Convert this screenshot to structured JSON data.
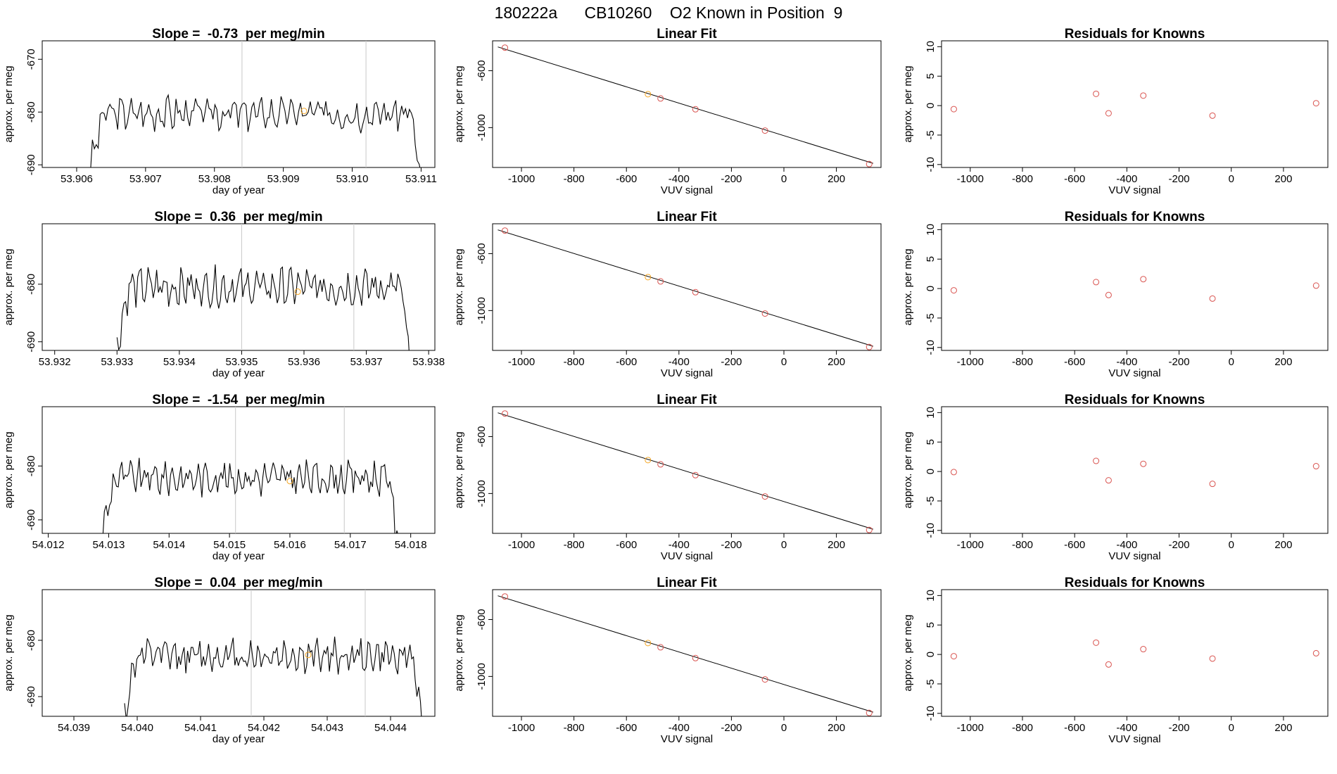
{
  "main_title": "180222a      CB10260    O2 Known in Position  9",
  "chart_data": [
    {
      "type": "line",
      "panel": "time-series-1",
      "title": "Slope =  -0.73  per meg/min",
      "xlabel": "day of year",
      "ylabel": "approx. per meg",
      "xlim": [
        53.9055,
        53.9112
      ],
      "ylim": [
        -690.5,
        -666.5
      ],
      "xticks": [
        53.906,
        53.907,
        53.908,
        53.909,
        53.91,
        53.911
      ],
      "xtick_labels": [
        "53.906",
        "53.907",
        "53.908",
        "53.909",
        "53.910",
        "53.911"
      ],
      "yticks": [
        -670,
        -680,
        -690
      ],
      "ytick_labels": [
        "-670",
        "-680",
        "-690"
      ],
      "vlines": [
        53.9084,
        53.9102
      ],
      "x_start": 53.9062,
      "x_end": 53.911,
      "y_base": -680.2,
      "y_amp": 3.2,
      "marker": {
        "x": 53.9093,
        "y": -679.8,
        "color": "#f5a623"
      },
      "line_color": "#000000",
      "vline_color": "#c8c8c8"
    },
    {
      "type": "scatter",
      "panel": "linear-fit-1",
      "title": "Linear Fit",
      "xlabel": "VUV signal",
      "ylabel": "approx. per meg",
      "xlim": [
        -1110,
        370
      ],
      "ylim": [
        -1280,
        -390
      ],
      "xticks": [
        -1000,
        -800,
        -600,
        -400,
        -200,
        0,
        200
      ],
      "xtick_labels": [
        "-1000",
        "-800",
        "-600",
        "-400",
        "-200",
        "0",
        "200"
      ],
      "yticks": [
        -600,
        -1000
      ],
      "ytick_labels": [
        "-600",
        "-1000"
      ],
      "fit_line": {
        "x": [
          -1090,
          340
        ],
        "y": [
          -433,
          -1251
        ]
      },
      "x": [
        -1063,
        -518,
        -470,
        -337,
        -72,
        325
      ],
      "y": [
        -438,
        -765,
        -795,
        -871,
        -1021,
        -1256
      ],
      "point_colors": [
        "#d9534f",
        "#f5a623",
        "#d9534f",
        "#d9534f",
        "#d9534f",
        "#d9534f"
      ]
    },
    {
      "type": "scatter",
      "panel": "residuals-1",
      "title": "Residuals for Knowns",
      "xlabel": "VUV signal",
      "ylabel": "approx. per meg",
      "xlim": [
        -1110,
        370
      ],
      "ylim": [
        -10.5,
        11
      ],
      "xticks": [
        -1000,
        -800,
        -600,
        -400,
        -200,
        0,
        200
      ],
      "xtick_labels": [
        "-1000",
        "-800",
        "-600",
        "-400",
        "-200",
        "0",
        "200"
      ],
      "yticks": [
        10,
        5,
        0,
        -5,
        -10
      ],
      "ytick_labels": [
        "10",
        "5",
        "0",
        "-5",
        "-10"
      ],
      "x": [
        -1063,
        -518,
        -470,
        -337,
        -72,
        325
      ],
      "y": [
        -0.6,
        2.0,
        -1.3,
        1.7,
        -1.7,
        0.4
      ],
      "point_color": "#d9534f"
    },
    {
      "type": "line",
      "panel": "time-series-2",
      "title": "Slope =  0.36  per meg/min",
      "xlabel": "day of year",
      "ylabel": "approx. per meg",
      "xlim": [
        53.9318,
        53.9381
      ],
      "ylim": [
        -691.5,
        -669.5
      ],
      "xticks": [
        53.932,
        53.933,
        53.934,
        53.935,
        53.936,
        53.937,
        53.938
      ],
      "xtick_labels": [
        "53.932",
        "53.933",
        "53.934",
        "53.935",
        "53.936",
        "53.937",
        "53.938"
      ],
      "yticks": [
        -680,
        -690
      ],
      "ytick_labels": [
        "-680",
        "-690"
      ],
      "vlines": [
        53.935,
        53.9368
      ],
      "x_start": 53.933,
      "x_end": 53.9377,
      "y_base": -680.5,
      "y_amp": 3.3,
      "marker": {
        "x": 53.9359,
        "y": -681.3,
        "color": "#f5a623"
      },
      "line_color": "#000000",
      "vline_color": "#c8c8c8"
    },
    {
      "type": "scatter",
      "panel": "linear-fit-2",
      "title": "Linear Fit",
      "xlabel": "VUV signal",
      "ylabel": "approx. per meg",
      "xlim": [
        -1110,
        370
      ],
      "ylim": [
        -1280,
        -390
      ],
      "xticks": [
        -1000,
        -800,
        -600,
        -400,
        -200,
        0,
        200
      ],
      "xtick_labels": [
        "-1000",
        "-800",
        "-600",
        "-400",
        "-200",
        "0",
        "200"
      ],
      "yticks": [
        -600,
        -1000
      ],
      "ytick_labels": [
        "-600",
        "-1000"
      ],
      "fit_line": {
        "x": [
          -1090,
          340
        ],
        "y": [
          -433,
          -1251
        ]
      },
      "x": [
        -1063,
        -518,
        -470,
        -337,
        -72,
        325
      ],
      "y": [
        -438,
        -765,
        -795,
        -871,
        -1021,
        -1256
      ],
      "point_colors": [
        "#d9534f",
        "#f5a623",
        "#d9534f",
        "#d9534f",
        "#d9534f",
        "#d9534f"
      ]
    },
    {
      "type": "scatter",
      "panel": "residuals-2",
      "title": "Residuals for Knowns",
      "xlabel": "VUV signal",
      "ylabel": "approx. per meg",
      "xlim": [
        -1110,
        370
      ],
      "ylim": [
        -10.5,
        11
      ],
      "xticks": [
        -1000,
        -800,
        -600,
        -400,
        -200,
        0,
        200
      ],
      "xtick_labels": [
        "-1000",
        "-800",
        "-600",
        "-400",
        "-200",
        "0",
        "200"
      ],
      "yticks": [
        10,
        5,
        0,
        -5,
        -10
      ],
      "ytick_labels": [
        "10",
        "5",
        "0",
        "-5",
        "-10"
      ],
      "x": [
        -1063,
        -518,
        -470,
        -337,
        -72,
        325
      ],
      "y": [
        -0.3,
        1.1,
        -1.1,
        1.6,
        -1.7,
        0.5
      ],
      "point_color": "#d9534f"
    },
    {
      "type": "line",
      "panel": "time-series-3",
      "title": "Slope =  -1.54  per meg/min",
      "xlabel": "day of year",
      "ylabel": "approx. per meg",
      "xlim": [
        54.0119,
        54.0184
      ],
      "ylim": [
        -692.5,
        -669
      ],
      "xticks": [
        54.012,
        54.013,
        54.014,
        54.015,
        54.016,
        54.017,
        54.018
      ],
      "xtick_labels": [
        "54.012",
        "54.013",
        "54.014",
        "54.015",
        "54.016",
        "54.017",
        "54.018"
      ],
      "yticks": [
        -680,
        -690
      ],
      "ytick_labels": [
        "-680",
        "-690"
      ],
      "vlines": [
        54.0151,
        54.0169
      ],
      "x_start": 54.0129,
      "x_end": 54.0178,
      "y_base": -682.2,
      "y_amp": 3.2,
      "marker": {
        "x": 54.016,
        "y": -682.8,
        "color": "#f5a623"
      },
      "line_color": "#000000",
      "vline_color": "#c8c8c8"
    },
    {
      "type": "scatter",
      "panel": "linear-fit-3",
      "title": "Linear Fit",
      "xlabel": "VUV signal",
      "ylabel": "approx. per meg",
      "xlim": [
        -1110,
        370
      ],
      "ylim": [
        -1280,
        -390
      ],
      "xticks": [
        -1000,
        -800,
        -600,
        -400,
        -200,
        0,
        200
      ],
      "xtick_labels": [
        "-1000",
        "-800",
        "-600",
        "-400",
        "-200",
        "0",
        "200"
      ],
      "yticks": [
        -600,
        -1000
      ],
      "ytick_labels": [
        "-600",
        "-1000"
      ],
      "fit_line": {
        "x": [
          -1090,
          340
        ],
        "y": [
          -433,
          -1251
        ]
      },
      "x": [
        -1063,
        -518,
        -470,
        -337,
        -72,
        325
      ],
      "y": [
        -438,
        -765,
        -795,
        -871,
        -1021,
        -1256
      ],
      "point_colors": [
        "#d9534f",
        "#f5a623",
        "#d9534f",
        "#d9534f",
        "#d9534f",
        "#d9534f"
      ]
    },
    {
      "type": "scatter",
      "panel": "residuals-3",
      "title": "Residuals for Knowns",
      "xlabel": "VUV signal",
      "ylabel": "approx. per meg",
      "xlim": [
        -1110,
        370
      ],
      "ylim": [
        -10.5,
        11
      ],
      "xticks": [
        -1000,
        -800,
        -600,
        -400,
        -200,
        0,
        200
      ],
      "xtick_labels": [
        "-1000",
        "-800",
        "-600",
        "-400",
        "-200",
        "0",
        "200"
      ],
      "yticks": [
        10,
        5,
        0,
        -5,
        -10
      ],
      "ytick_labels": [
        "10",
        "5",
        "0",
        "-5",
        "-10"
      ],
      "x": [
        -1063,
        -518,
        -470,
        -337,
        -72,
        325
      ],
      "y": [
        -0.1,
        1.8,
        -1.5,
        1.3,
        -2.1,
        0.9
      ],
      "point_color": "#d9534f"
    },
    {
      "type": "line",
      "panel": "time-series-4",
      "title": "Slope =  0.04  per meg/min",
      "xlabel": "day of year",
      "ylabel": "approx. per meg",
      "xlim": [
        54.0385,
        54.0447
      ],
      "ylim": [
        -693.5,
        -671
      ],
      "xticks": [
        54.039,
        54.04,
        54.041,
        54.042,
        54.043,
        54.044
      ],
      "xtick_labels": [
        "54.039",
        "54.040",
        "54.041",
        "54.042",
        "54.043",
        "54.044"
      ],
      "yticks": [
        -680,
        -690
      ],
      "ytick_labels": [
        "-680",
        "-690"
      ],
      "vlines": [
        54.0418,
        54.0436
      ],
      "x_start": 54.0398,
      "x_end": 54.0445,
      "y_base": -682.8,
      "y_amp": 3.0,
      "marker": {
        "x": 54.0427,
        "y": -682.6,
        "color": "#f5a623"
      },
      "line_color": "#000000",
      "vline_color": "#c8c8c8"
    },
    {
      "type": "scatter",
      "panel": "linear-fit-4",
      "title": "Linear Fit",
      "xlabel": "VUV signal",
      "ylabel": "approx. per meg",
      "xlim": [
        -1110,
        370
      ],
      "ylim": [
        -1280,
        -390
      ],
      "xticks": [
        -1000,
        -800,
        -600,
        -400,
        -200,
        0,
        200
      ],
      "xtick_labels": [
        "-1000",
        "-800",
        "-600",
        "-400",
        "-200",
        "0",
        "200"
      ],
      "yticks": [
        -600,
        -1000
      ],
      "ytick_labels": [
        "-600",
        "-1000"
      ],
      "fit_line": {
        "x": [
          -1090,
          340
        ],
        "y": [
          -433,
          -1251
        ]
      },
      "x": [
        -1063,
        -518,
        -470,
        -337,
        -72,
        325
      ],
      "y": [
        -438,
        -765,
        -795,
        -871,
        -1021,
        -1256
      ],
      "point_colors": [
        "#d9534f",
        "#f5a623",
        "#d9534f",
        "#d9534f",
        "#d9534f",
        "#d9534f"
      ]
    },
    {
      "type": "scatter",
      "panel": "residuals-4",
      "title": "Residuals for Knowns",
      "xlabel": "VUV signal",
      "ylabel": "approx. per meg",
      "xlim": [
        -1110,
        370
      ],
      "ylim": [
        -10.5,
        11
      ],
      "xticks": [
        -1000,
        -800,
        -600,
        -400,
        -200,
        0,
        200
      ],
      "xtick_labels": [
        "-1000",
        "-800",
        "-600",
        "-400",
        "-200",
        "0",
        "200"
      ],
      "yticks": [
        10,
        5,
        0,
        -5,
        -10
      ],
      "ytick_labels": [
        "10",
        "5",
        "0",
        "-5",
        "-10"
      ],
      "x": [
        -1063,
        -518,
        -470,
        -337,
        -72,
        325
      ],
      "y": [
        -0.3,
        2.0,
        -1.7,
        0.9,
        -0.7,
        0.2
      ],
      "point_color": "#d9534f"
    }
  ]
}
